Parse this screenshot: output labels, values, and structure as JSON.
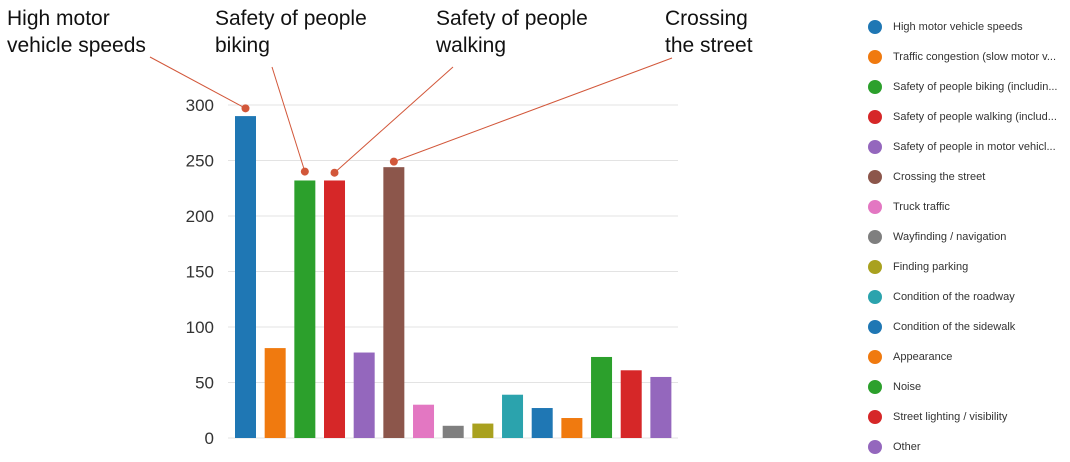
{
  "chart_data": {
    "type": "bar",
    "title": "",
    "xlabel": "",
    "ylabel": "",
    "ylim": [
      0,
      300
    ],
    "yticks": [
      0,
      50,
      100,
      150,
      200,
      250,
      300
    ],
    "grid": true,
    "legend_position": "right",
    "categories": [
      "High motor vehicle speeds",
      "Traffic congestion (slow motor v...",
      "Safety of people biking (includin...",
      "Safety of people walking (includ...",
      "Safety of people in motor vehicl...",
      "Crossing the street",
      "Truck traffic",
      "Wayfinding / navigation",
      "Finding parking",
      "Condition of the roadway",
      "Condition of the sidewalk",
      "Appearance",
      "Noise",
      "Street lighting / visibility",
      "Other"
    ],
    "values": [
      290,
      81,
      232,
      232,
      77,
      244,
      30,
      11,
      13,
      39,
      27,
      18,
      73,
      61,
      55
    ],
    "colors": [
      "#1f77b4",
      "#f07a0f",
      "#2ca02c",
      "#d62728",
      "#9467bd",
      "#8c564b",
      "#e377c2",
      "#7f7f7f",
      "#a9a11f",
      "#2ba3ad",
      "#1f77b4",
      "#f07a0f",
      "#2ca02c",
      "#d62728",
      "#9467bd"
    ],
    "annotations": [
      {
        "category_index": 0,
        "point_value": 297,
        "lines": [
          "High motor",
          "vehicle speeds"
        ]
      },
      {
        "category_index": 2,
        "point_value": 240,
        "lines": [
          "Safety of people",
          "biking"
        ]
      },
      {
        "category_index": 3,
        "point_value": 239,
        "lines": [
          "Safety of people",
          "walking"
        ]
      },
      {
        "category_index": 5,
        "point_value": 249,
        "lines": [
          "Crossing",
          "the street"
        ]
      }
    ],
    "annotation_color": "#d2573a"
  }
}
